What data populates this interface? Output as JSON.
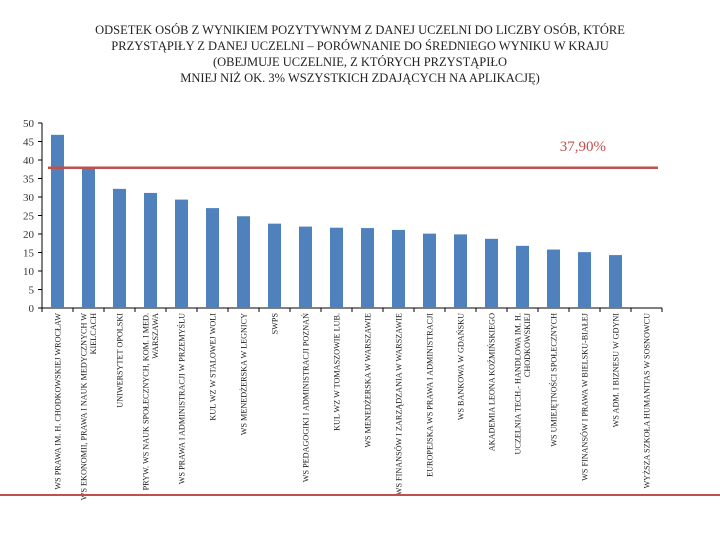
{
  "title": "ODSETEK OSÓB Z WYNIKIEM POZYTYWNYM Z DANEJ UCZELNI DO LICZBY OSÓB, KTÓRE\nPRZYSTĄPIŁY Z DANEJ UCZELNI – PORÓWNANIE DO ŚREDNIEGO WYNIKU W KRAJU\n(OBEJMUJE UCZELNIE, Z KTÓRYCH PRZYSTĄPIŁO\nMNIEJ NIŻ OK. 3% WSZYSTKICH ZDAJĄCYCH NA APLIKACJĘ)",
  "colors": {
    "bar": "#4f81bd",
    "reference": "#c0504d",
    "reference_label": "#c0504d",
    "axis": "#000000"
  },
  "chart_data": {
    "type": "bar",
    "title": "ODSETEK OSÓB Z WYNIKIEM POZYTYWNYM Z DANEJ UCZELNI DO LICZBY OSÓB, KTÓRE PRZYSTĄPIŁY Z DANEJ UCZELNI – PORÓWNANIE DO ŚREDNIEGO WYNIKU W KRAJU (OBEJMUJE UCZELNIE, Z KTÓRYCH PRZYSTĄPIŁO MNIEJ NIŻ OK. 3% WSZYSTKICH ZDAJĄCYCH NA APLIKACJĘ)",
    "categories": [
      "WS PRAWA IM. H. CHODKOWSKIEJ WROCŁAW",
      "WS EKONOMII, PRAWA I NAUK MEDYCZNYCH W KIELCACH",
      "UNIWERSYTET OPOLSKI",
      "PRYW. WS NAUK SPOŁECZNYCH, KOM. I MED. WARSZAWA",
      "WS PRAWA I ADMINISTRACJI W PRZEMYŚLU",
      "KUL WZ W STALOWEJ WOLI",
      "WS MENEDŻERSKA W LEGNICY",
      "SWPS",
      "WS PEDAGOGIKI I ADMINISTRACJI POZNAŃ",
      "KUL WZ W TOMASZOWIE LUB.",
      "WS MENEDŻERSKA W WARSZAWIE",
      "WS FINANSÓW I ZARZĄDZANIA W WARSZAWIE",
      "EUROPEJSKA WS PRAWA I ADMINISTRACJI",
      "WS BANKOWA W GDAŃSKU",
      "AKADEMIA LEONA KOŹMIŃSKIEGO",
      "UCZELNIA TECH.- HANDLOWA IM. H. CHODKOWSKIEJ",
      "WS UMIEJĘTNOŚCI SPOŁECZNYCH",
      "WS FINANSÓW I PRAWA W BIELSKU-BIAŁEJ",
      "WS ADM. I BIZNESU W GDYNI",
      "WYŻSZA SZKOŁA HUMANITAS W SOSNOWCU"
    ],
    "values": [
      46.8,
      37.9,
      32.2,
      31.1,
      29.3,
      27.0,
      24.8,
      22.8,
      22.0,
      21.7,
      21.6,
      21.1,
      20.1,
      19.9,
      18.7,
      16.8,
      15.8,
      15.1,
      14.3,
      0
    ],
    "reference_value": 37.9,
    "reference_label": "37,90%",
    "ylim": [
      0,
      50
    ],
    "yticks": [
      "0",
      "5",
      "10",
      "15",
      "20",
      "25",
      "30",
      "35",
      "40",
      "45",
      "50"
    ],
    "xlabel": "",
    "ylabel": "",
    "grid": false,
    "legend": "none"
  }
}
